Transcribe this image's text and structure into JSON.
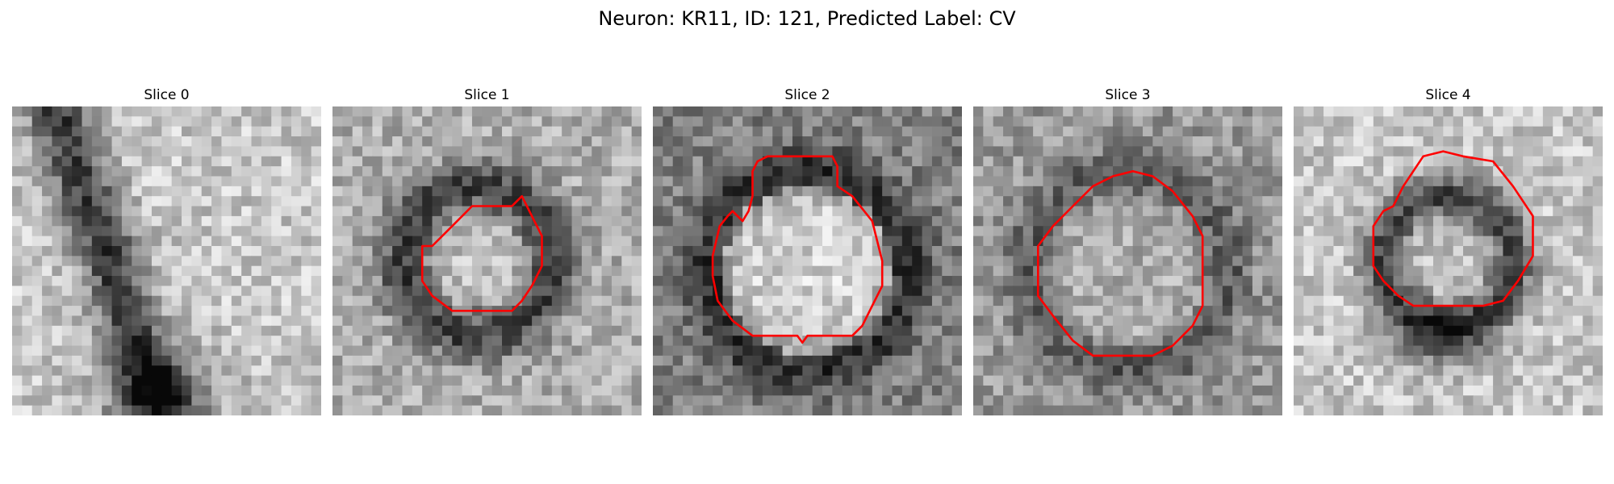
{
  "figure": {
    "title": "Neuron: KR11, ID: 121, Predicted Label: CV"
  },
  "panels": [
    {
      "title": "Slice 0",
      "contour": null,
      "seed": 11
    },
    {
      "title": "Slice 1",
      "contour": "ring-small",
      "seed": 23
    },
    {
      "title": "Slice 2",
      "contour": "blob-large",
      "seed": 37
    },
    {
      "title": "Slice 3",
      "contour": "octagon-large",
      "seed": 41
    },
    {
      "title": "Slice 4",
      "contour": "octagon-mid",
      "seed": 59
    }
  ],
  "colors": {
    "contour": "#ff0000",
    "background": "#ffffff"
  }
}
